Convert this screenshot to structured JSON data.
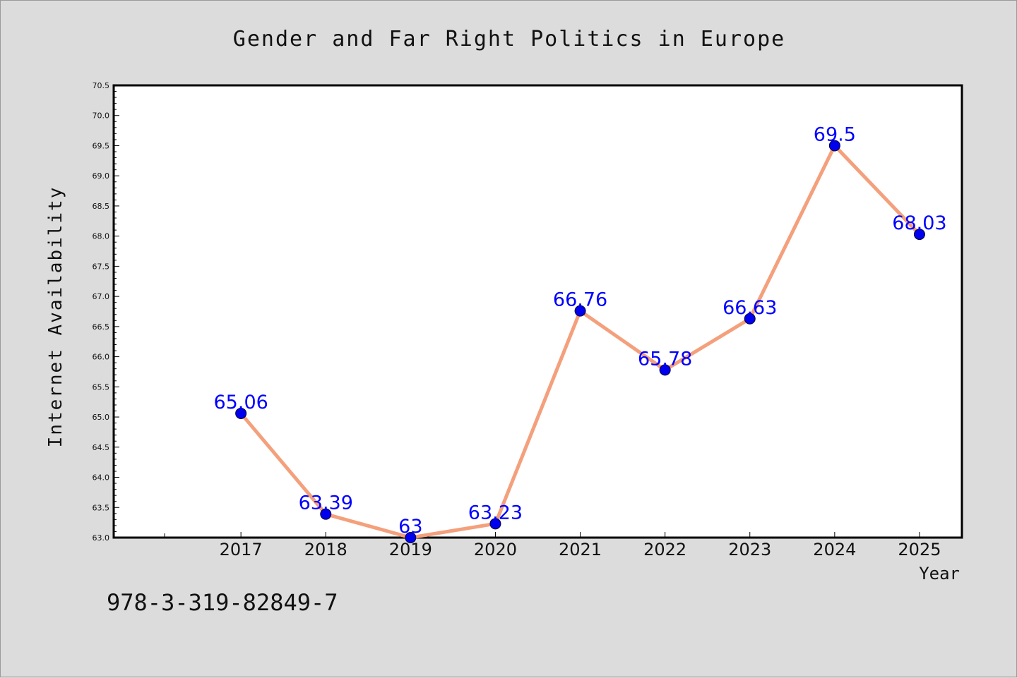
{
  "chart_data": {
    "type": "line",
    "title": "Gender and Far Right Politics in Europe",
    "xlabel": "Year",
    "ylabel": "Internet Availability",
    "categories": [
      "2017",
      "2018",
      "2019",
      "2020",
      "2021",
      "2022",
      "2023",
      "2024",
      "2025"
    ],
    "series": [
      {
        "values": [
          65.06,
          63.39,
          63,
          63.23,
          66.76,
          65.78,
          66.63,
          69.5,
          68.03
        ],
        "data_labels": [
          "65.06",
          "63.39",
          "63",
          "63.23",
          "66.76",
          "65.78",
          "66.63",
          "69.5",
          "68.03"
        ]
      }
    ],
    "ylim": [
      63.0,
      70.5
    ],
    "yticks": [
      "63.0",
      "63.5",
      "64.0",
      "64.5",
      "65.0",
      "65.5",
      "66.0",
      "66.5",
      "67.0",
      "67.5",
      "68.0",
      "68.5",
      "69.0",
      "69.5",
      "70.0",
      "70.5"
    ],
    "grid": false,
    "legend": "none",
    "colors": {
      "line": "#f4a07c",
      "marker": "#0000ee",
      "data_label": "#0000ff",
      "background": "#dcdcdc",
      "plot_area": "#ffffff"
    }
  },
  "footnote": "978-3-319-82849-7"
}
